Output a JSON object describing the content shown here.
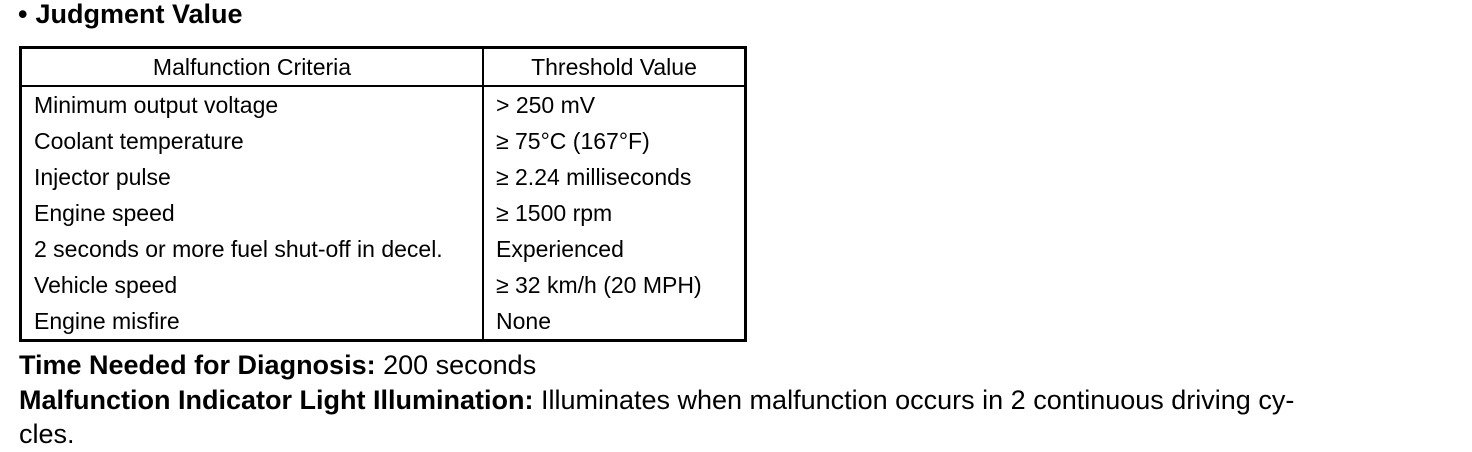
{
  "heading": {
    "bullet": "•",
    "title": "Judgment Value"
  },
  "table": {
    "headers": [
      "Malfunction Criteria",
      "Threshold Value"
    ],
    "rows": [
      [
        "Minimum output voltage",
        "> 250 mV"
      ],
      [
        "Coolant temperature",
        "≥ 75°C (167°F)"
      ],
      [
        "Injector pulse",
        "≥ 2.24 milliseconds"
      ],
      [
        "Engine speed",
        "≥ 1500 rpm"
      ],
      [
        "2 seconds or more fuel shut-off in decel.",
        "Experienced"
      ],
      [
        "Vehicle speed",
        "≥ 32 km/h (20 MPH)"
      ],
      [
        "Engine misfire",
        "None"
      ]
    ]
  },
  "diagnosis": {
    "label": "Time Needed for Diagnosis:",
    "value": " 200 seconds"
  },
  "mil": {
    "label": "Malfunction Indicator Light Illumination:",
    "value_line1": " Illuminates when malfunction occurs in 2 continuous driving cy-",
    "value_line2": "cles."
  }
}
